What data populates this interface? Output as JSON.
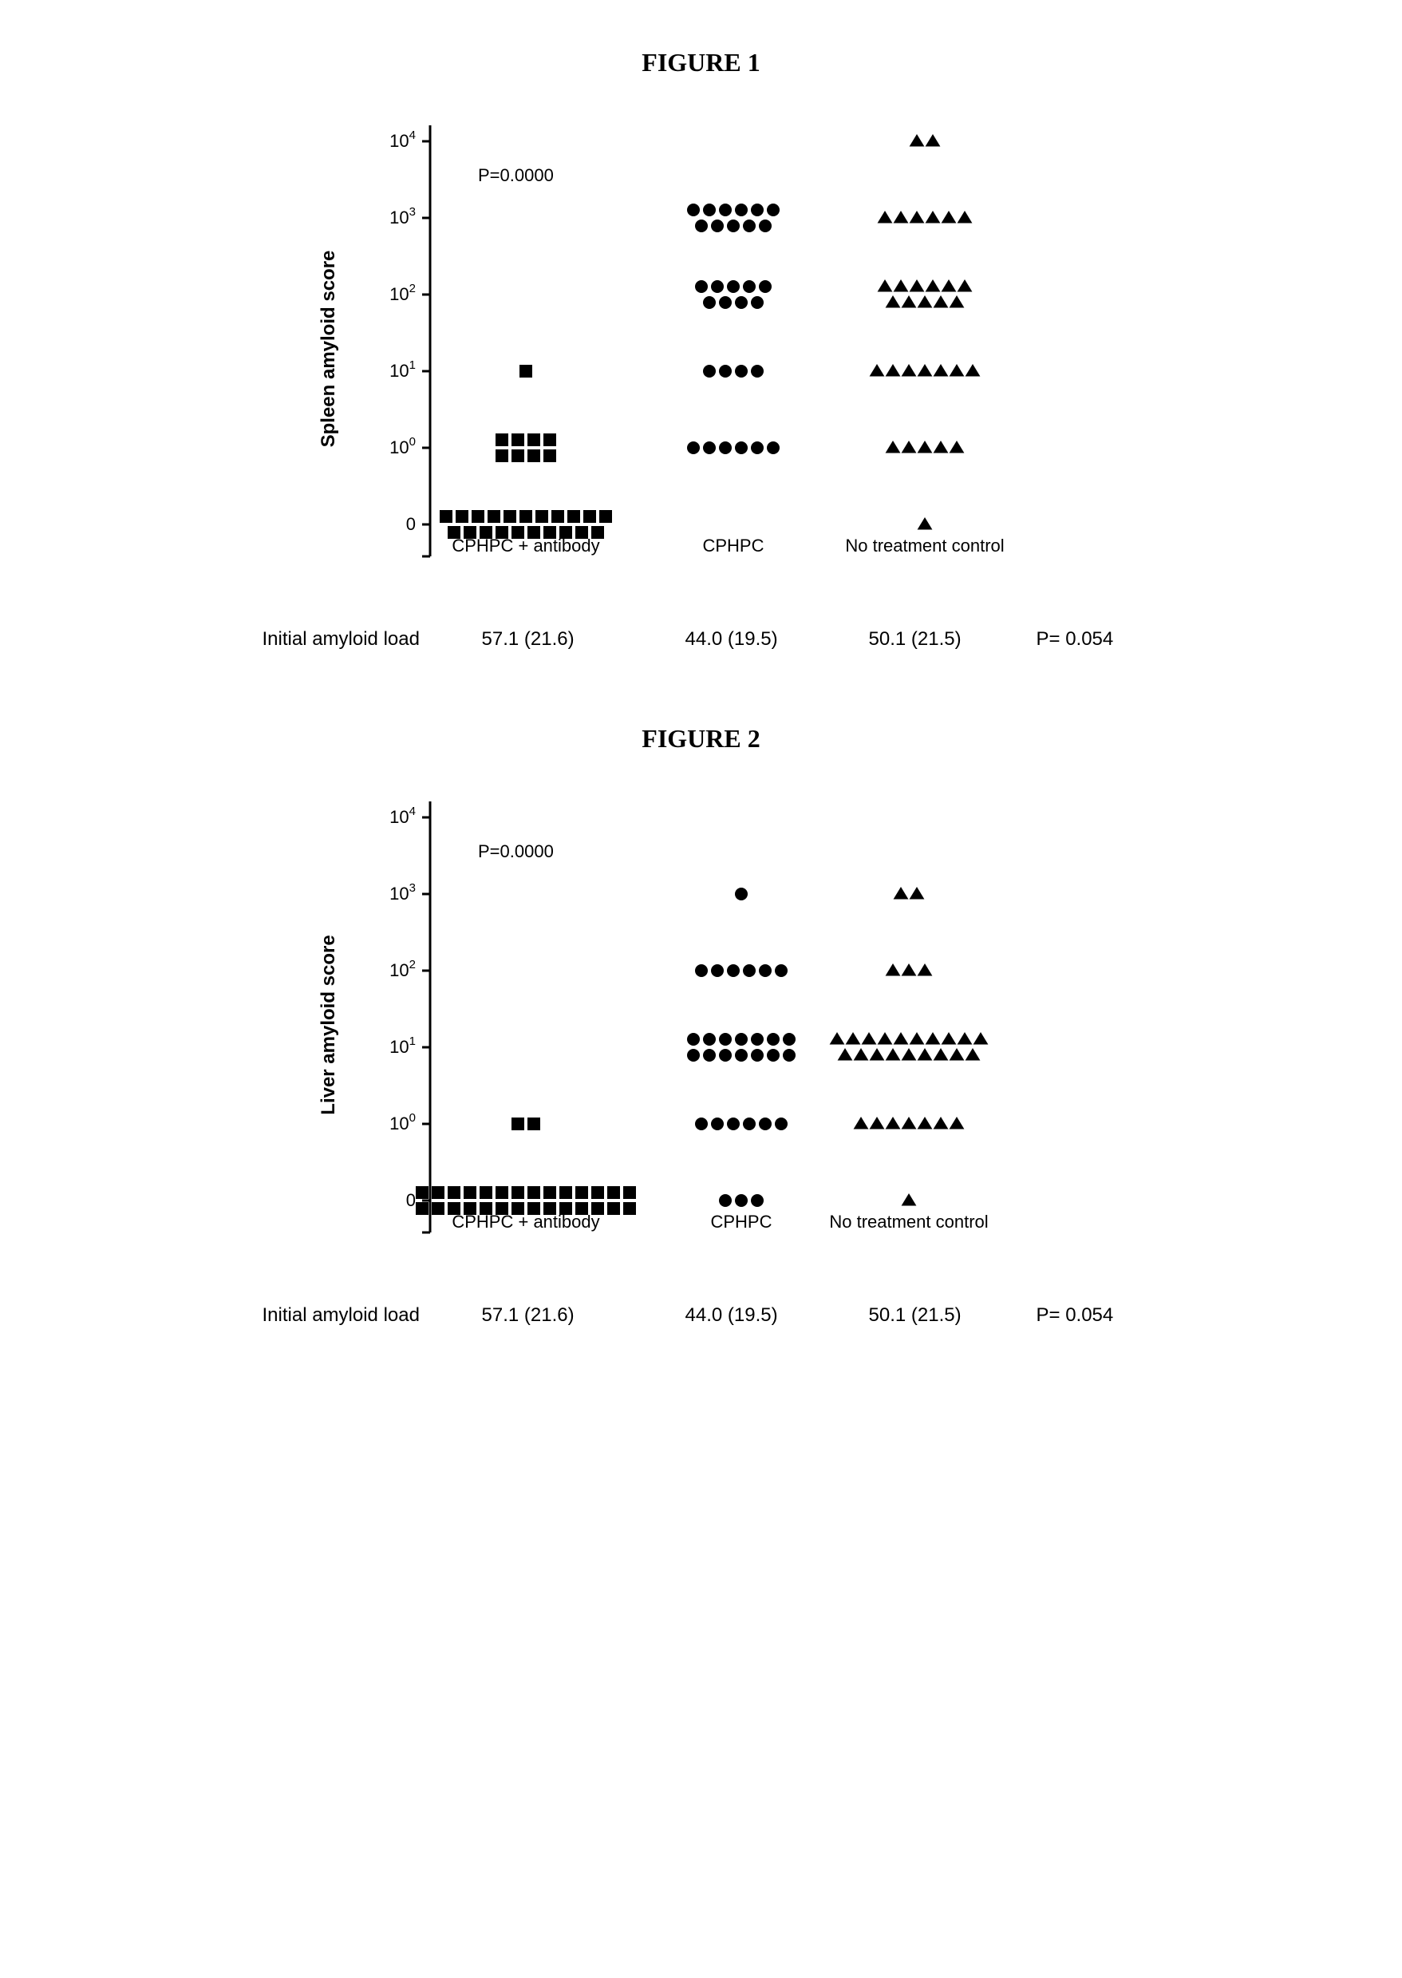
{
  "colors": {
    "ink": "#000000",
    "bg": "#ffffff"
  },
  "typography": {
    "titleFont": "Times New Roman",
    "titleSize": 32,
    "titleWeight": "bold",
    "axisFont": "Arial",
    "axisSize": 24,
    "tickSize": 22,
    "annotationSize": 22
  },
  "charts": [
    {
      "id": "fig1",
      "title": "FIGURE 1",
      "type": "scatter-categorical-logy",
      "ylabel": "Spleen amyloid score",
      "yTicks": [
        {
          "level": 0,
          "label": "0"
        },
        {
          "level": 1,
          "label": "10",
          "sup": "0"
        },
        {
          "level": 2,
          "label": "10",
          "sup": "1"
        },
        {
          "level": 3,
          "label": "10",
          "sup": "2"
        },
        {
          "level": 4,
          "label": "10",
          "sup": "3"
        },
        {
          "level": 5,
          "label": "10",
          "sup": "4"
        }
      ],
      "pValueText": "P=0.0000",
      "groups": [
        {
          "key": "cphpc_antibody",
          "label": "CPHPC + antibody",
          "marker": "square",
          "counts": {
            "0": 21,
            "1": 8,
            "2": 1,
            "3": 0,
            "4": 0,
            "5": 0
          },
          "initialLoad": "57.1 (21.6)"
        },
        {
          "key": "cphpc",
          "label": "CPHPC",
          "marker": "circle",
          "counts": {
            "0": 0,
            "1": 6,
            "2": 4,
            "3": 9,
            "4": 11,
            "5": 0
          },
          "initialLoad": "44.0 (19.5)"
        },
        {
          "key": "control",
          "label": "No treatment control",
          "marker": "triangle",
          "counts": {
            "0": 1,
            "1": 5,
            "2": 7,
            "3": 11,
            "4": 6,
            "5": 2
          },
          "initialLoad": "50.1 (21.5)"
        }
      ],
      "bottomLabel": "Initial amyloid load",
      "bottomP": "P= 0.054",
      "layout": {
        "svgW": 1040,
        "svgH": 620,
        "plotLeft": 210,
        "plotRight": 1000,
        "plotTop": 40,
        "plotBottom": 560,
        "groupCenters": [
          330,
          590,
          830
        ],
        "levelGap": 96,
        "markerSize": 16,
        "markerGap": 20,
        "axisStroke": 3,
        "tickLen": 10
      }
    },
    {
      "id": "fig2",
      "title": "FIGURE 2",
      "type": "scatter-categorical-logy",
      "ylabel": "Liver amyloid score",
      "yTicks": [
        {
          "level": 0,
          "label": "0"
        },
        {
          "level": 1,
          "label": "10",
          "sup": "0"
        },
        {
          "level": 2,
          "label": "10",
          "sup": "1"
        },
        {
          "level": 3,
          "label": "10",
          "sup": "2"
        },
        {
          "level": 4,
          "label": "10",
          "sup": "3"
        },
        {
          "level": 5,
          "label": "10",
          "sup": "4"
        }
      ],
      "pValueText": "P=0.0000",
      "groups": [
        {
          "key": "cphpc_antibody",
          "label": "CPHPC + antibody",
          "marker": "square",
          "counts": {
            "0": 28,
            "1": 2,
            "2": 0,
            "3": 0,
            "4": 0,
            "5": 0
          },
          "initialLoad": "57.1 (21.6)"
        },
        {
          "key": "cphpc",
          "label": "CPHPC",
          "marker": "circle",
          "counts": {
            "0": 3,
            "1": 6,
            "2": 14,
            "3": 6,
            "4": 1,
            "5": 0
          },
          "initialLoad": "44.0 (19.5)"
        },
        {
          "key": "control",
          "label": "No treatment control",
          "marker": "triangle",
          "counts": {
            "0": 1,
            "1": 7,
            "2": 19,
            "3": 3,
            "4": 2,
            "5": 0
          },
          "initialLoad": "50.1 (21.5)"
        }
      ],
      "bottomLabel": "Initial amyloid load",
      "bottomP": "P= 0.054",
      "layout": {
        "svgW": 1040,
        "svgH": 620,
        "plotLeft": 210,
        "plotRight": 1000,
        "plotTop": 40,
        "plotBottom": 560,
        "groupCenters": [
          330,
          600,
          810
        ],
        "levelGap": 96,
        "markerSize": 16,
        "markerGap": 20,
        "axisStroke": 3,
        "tickLen": 10
      }
    }
  ]
}
